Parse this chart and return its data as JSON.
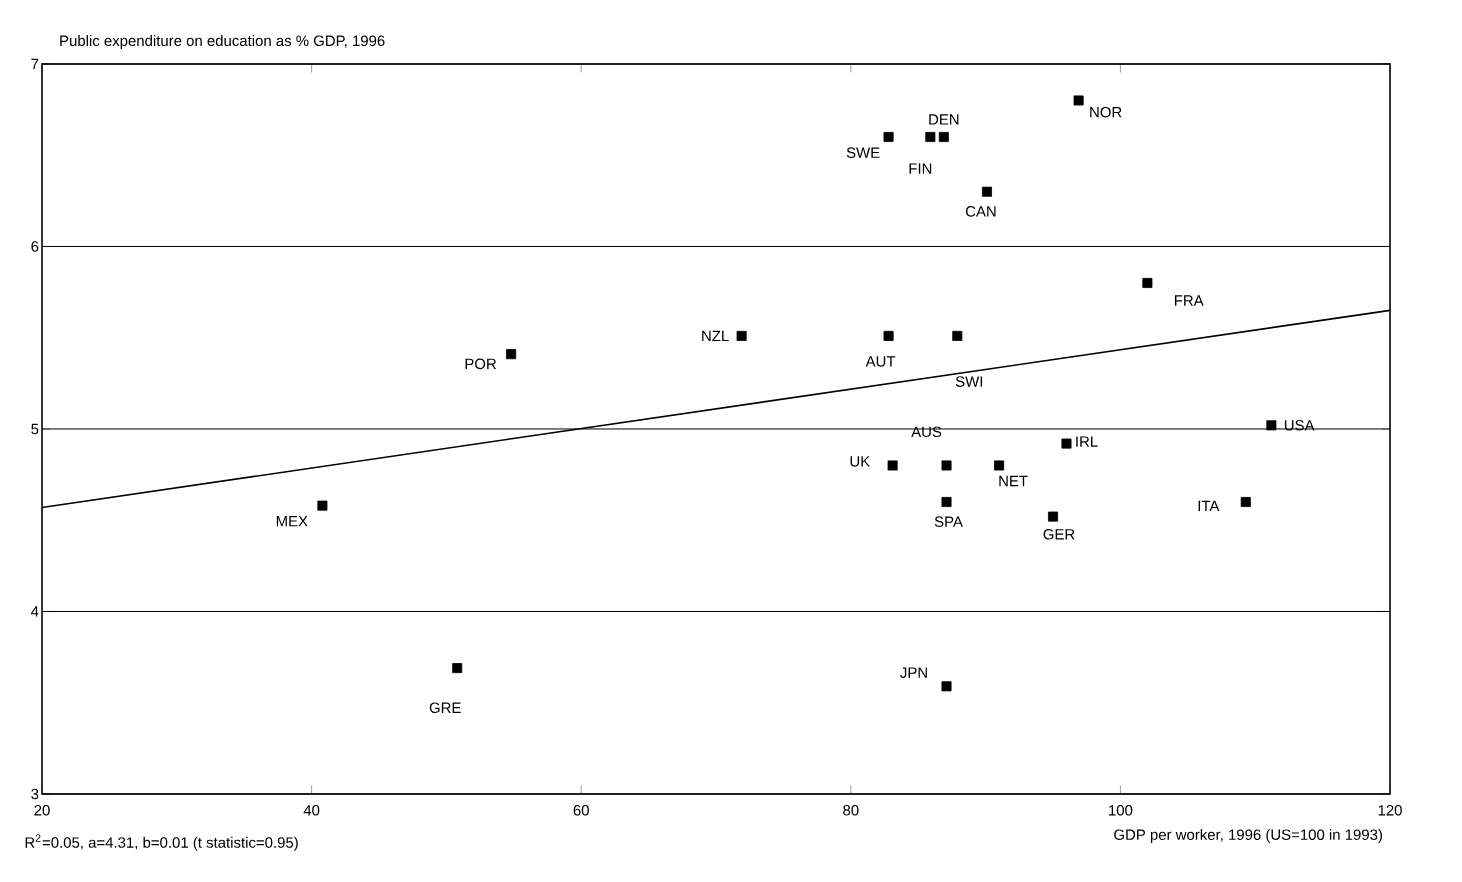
{
  "chart_data": {
    "type": "scatter",
    "title": "Public expenditure on education as % GDP, 1996",
    "xlabel": "GDP per worker, 1996 (US=100 in 1993)",
    "xlim": [
      20,
      120
    ],
    "ylim": [
      3,
      7
    ],
    "xticks": [
      20,
      40,
      60,
      80,
      100,
      120
    ],
    "yticks": [
      3,
      4,
      5,
      6,
      7
    ],
    "grid": "y",
    "marker": "square",
    "series": [
      {
        "color": "#000000",
        "x": [
          54.8,
          71.9,
          86.9,
          82.8,
          85.9,
          96.9,
          90.1,
          102,
          82.8,
          87.9,
          87.1,
          83.1,
          91.0,
          87.1,
          95.0,
          109.3,
          111.2,
          96.0,
          87.1,
          40.8,
          50.8
        ],
        "values": [
          5.41,
          5.51,
          6.6,
          6.6,
          6.6,
          6.8,
          6.3,
          5.8,
          5.51,
          5.51,
          4.8,
          4.8,
          4.8,
          4.6,
          4.52,
          4.6,
          5.02,
          4.92,
          3.59,
          4.58,
          3.69
        ]
      },
      {
        "type": "line",
        "marker": "none",
        "color": "#000000",
        "x": [
          20,
          120
        ],
        "values": [
          4.57,
          5.65
        ]
      }
    ],
    "annotations": [
      {
        "text": "POR",
        "x": 54.8,
        "y": 5.41
      },
      {
        "text": "NZL",
        "x": 71.9,
        "y": 5.51
      },
      {
        "text": "DEN",
        "x": 86.9,
        "y": 6.6
      },
      {
        "text": "SWE",
        "x": 82.8,
        "y": 6.6
      },
      {
        "text": "FIN",
        "x": 85.9,
        "y": 6.6
      },
      {
        "text": "NOR",
        "x": 96.9,
        "y": 6.8
      },
      {
        "text": "CAN",
        "x": 90.1,
        "y": 6.3
      },
      {
        "text": "FRA",
        "x": 102,
        "y": 5.8
      },
      {
        "text": "AUT",
        "x": 82.8,
        "y": 5.51
      },
      {
        "text": "SWI",
        "x": 87.9,
        "y": 5.51
      },
      {
        "text": "AUS",
        "x": 87.1,
        "y": 4.8
      },
      {
        "text": "UK",
        "x": 83.1,
        "y": 4.8
      },
      {
        "text": "NET",
        "x": 91.0,
        "y": 4.8
      },
      {
        "text": "SPA",
        "x": 87.1,
        "y": 4.6
      },
      {
        "text": "GER",
        "x": 95.0,
        "y": 4.52
      },
      {
        "text": "ITA",
        "x": 109.3,
        "y": 4.6
      },
      {
        "text": "USA",
        "x": 111.2,
        "y": 5.02
      },
      {
        "text": "IRL",
        "x": 96.0,
        "y": 4.92
      },
      {
        "text": "JPN",
        "x": 87.1,
        "y": 3.59
      },
      {
        "text": "MEX",
        "x": 40.8,
        "y": 4.58
      },
      {
        "text": "GRE",
        "x": 50.8,
        "y": 3.69
      },
      "R$^{2}$=0.05, a=4.31, b=0.01 (t statistic=0.95)"
    ]
  }
}
